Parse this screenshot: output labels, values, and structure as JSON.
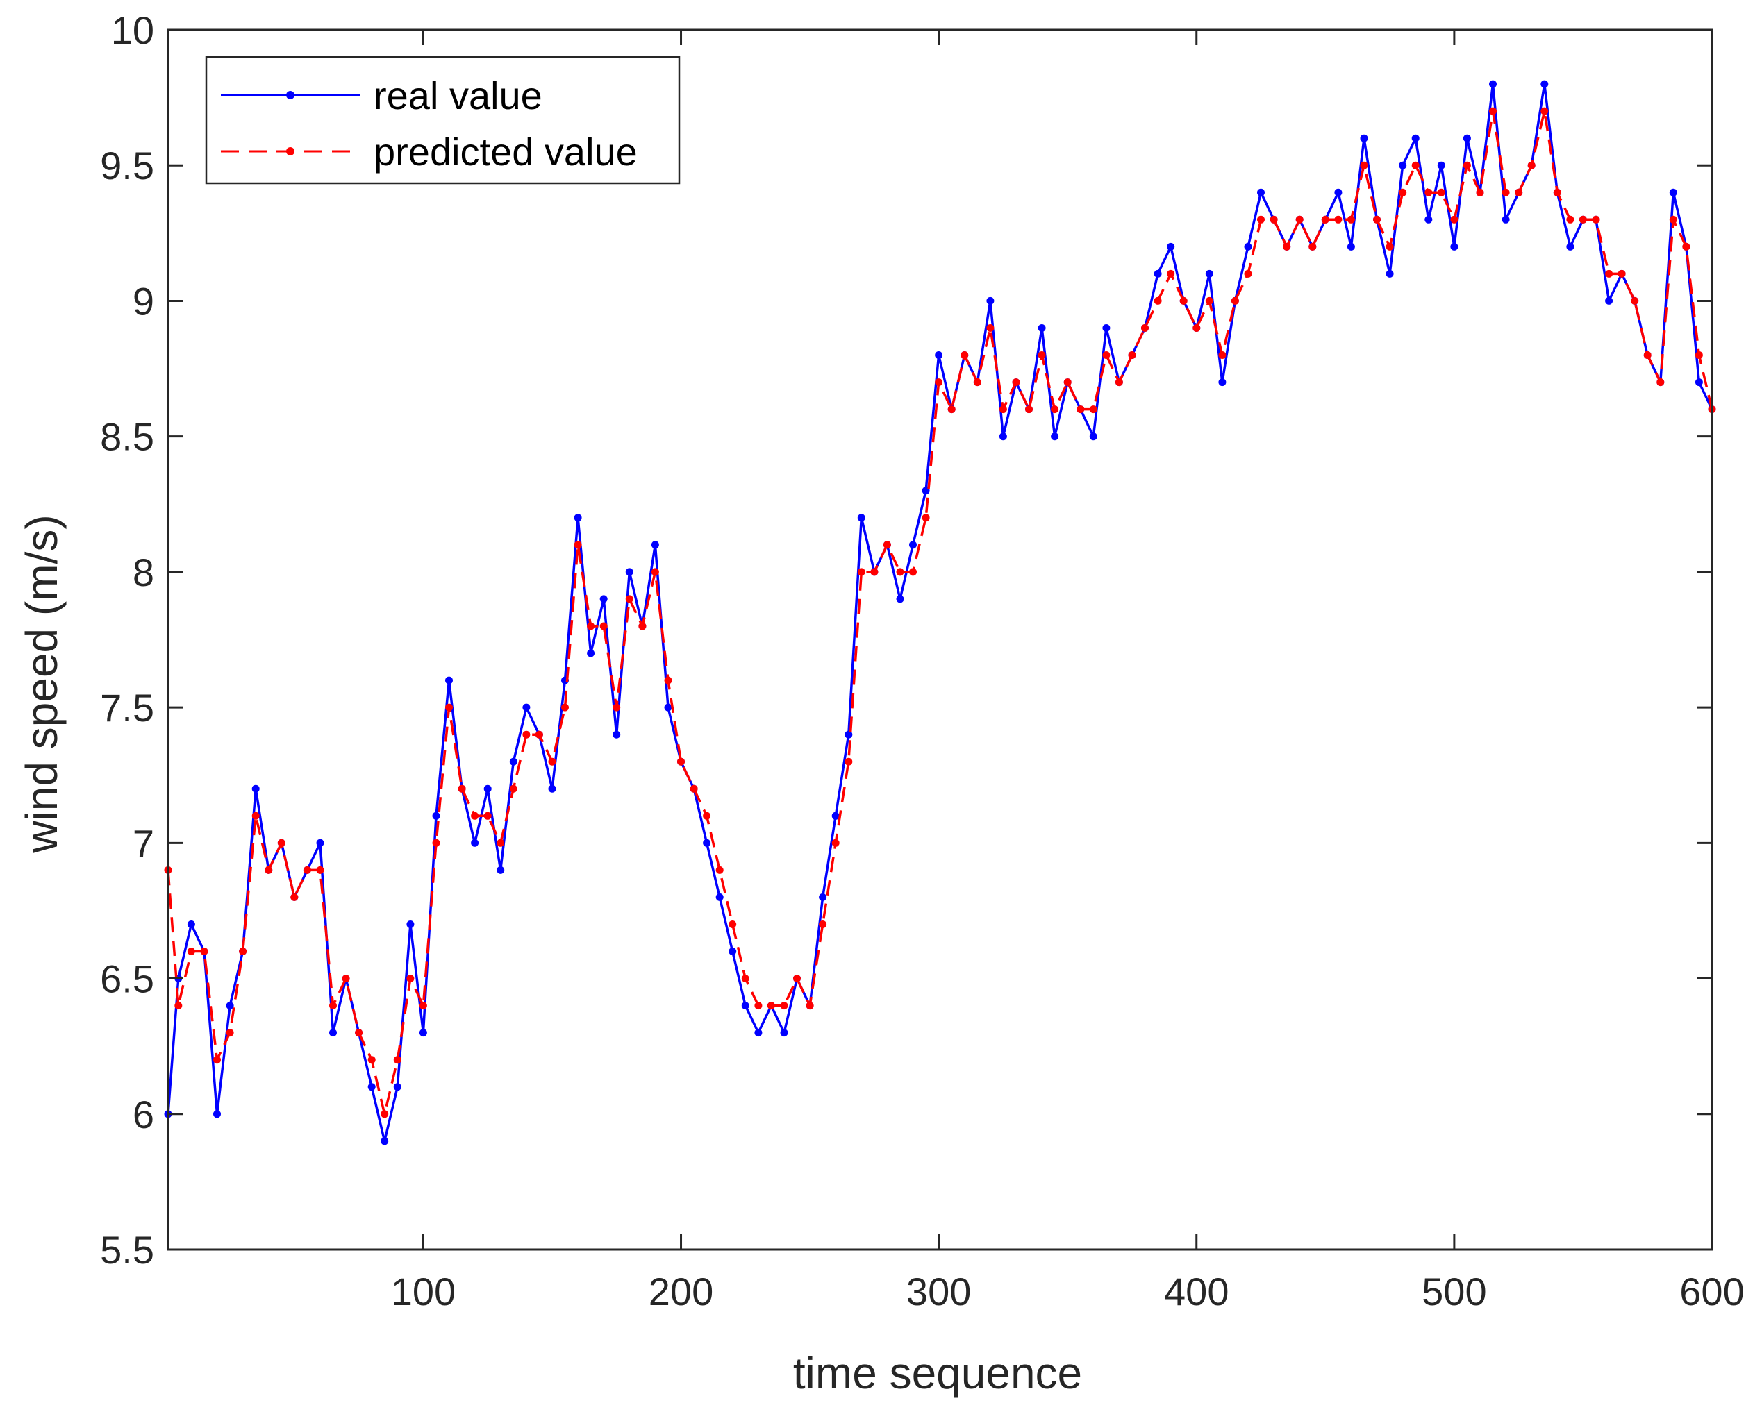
{
  "chart_data": {
    "type": "line",
    "title": "",
    "xlabel": "time sequence",
    "ylabel": "wind speed (m/s)",
    "xlim": [
      1,
      600
    ],
    "ylim": [
      5.5,
      10
    ],
    "xticks": [
      100,
      200,
      300,
      400,
      500,
      600
    ],
    "xtick_labels": [
      "100",
      "200",
      "300",
      "400",
      "500",
      "600"
    ],
    "yticks": [
      5.5,
      6,
      6.5,
      7,
      7.5,
      8,
      8.5,
      9,
      9.5,
      10
    ],
    "ytick_labels": [
      "5.5",
      "6",
      "6.5",
      "7",
      "7.5",
      "8",
      "8.5",
      "9",
      "9.5",
      "10"
    ],
    "legend_position": "top-left",
    "grid": false,
    "sampling": "every 5th point of 600 (approximate readings)",
    "x": [
      1,
      5,
      10,
      15,
      20,
      25,
      30,
      35,
      40,
      45,
      50,
      55,
      60,
      65,
      70,
      75,
      80,
      85,
      90,
      95,
      100,
      105,
      110,
      115,
      120,
      125,
      130,
      135,
      140,
      145,
      150,
      155,
      160,
      165,
      170,
      175,
      180,
      185,
      190,
      195,
      200,
      205,
      210,
      215,
      220,
      225,
      230,
      235,
      240,
      245,
      250,
      255,
      260,
      265,
      270,
      275,
      280,
      285,
      290,
      295,
      300,
      305,
      310,
      315,
      320,
      325,
      330,
      335,
      340,
      345,
      350,
      355,
      360,
      365,
      370,
      375,
      380,
      385,
      390,
      395,
      400,
      405,
      410,
      415,
      420,
      425,
      430,
      435,
      440,
      445,
      450,
      455,
      460,
      465,
      470,
      475,
      480,
      485,
      490,
      495,
      500,
      505,
      510,
      515,
      520,
      525,
      530,
      535,
      540,
      545,
      550,
      555,
      560,
      565,
      570,
      575,
      580,
      585,
      590,
      595,
      600
    ],
    "series": [
      {
        "name": "real value",
        "color": "#0000ff",
        "style": "solid",
        "values": [
          6.0,
          6.5,
          6.7,
          6.6,
          6.0,
          6.4,
          6.6,
          7.2,
          6.9,
          7.0,
          6.8,
          6.9,
          7.0,
          6.3,
          6.5,
          6.3,
          6.1,
          5.9,
          6.1,
          6.7,
          6.3,
          7.1,
          7.6,
          7.2,
          7.0,
          7.2,
          6.9,
          7.3,
          7.5,
          7.4,
          7.2,
          7.6,
          8.2,
          7.7,
          7.9,
          7.4,
          8.0,
          7.8,
          8.1,
          7.5,
          7.3,
          7.2,
          7.0,
          6.8,
          6.6,
          6.4,
          6.3,
          6.4,
          6.3,
          6.5,
          6.4,
          6.8,
          7.1,
          7.4,
          8.2,
          8.0,
          8.1,
          7.9,
          8.1,
          8.3,
          8.8,
          8.6,
          8.8,
          8.7,
          9.0,
          8.5,
          8.7,
          8.6,
          8.9,
          8.5,
          8.7,
          8.6,
          8.5,
          8.9,
          8.7,
          8.8,
          8.9,
          9.1,
          9.2,
          9.0,
          8.9,
          9.1,
          8.7,
          9.0,
          9.2,
          9.4,
          9.3,
          9.2,
          9.3,
          9.2,
          9.3,
          9.4,
          9.2,
          9.6,
          9.3,
          9.1,
          9.5,
          9.6,
          9.3,
          9.5,
          9.2,
          9.6,
          9.4,
          9.8,
          9.3,
          9.4,
          9.5,
          9.8,
          9.4,
          9.2,
          9.3,
          9.3,
          9.0,
          9.1,
          9.0,
          8.8,
          8.7,
          9.4,
          9.2,
          8.7,
          8.6
        ]
      },
      {
        "name": "predicted value",
        "color": "#ff0000",
        "style": "dashed",
        "values": [
          6.9,
          6.4,
          6.6,
          6.6,
          6.2,
          6.3,
          6.6,
          7.1,
          6.9,
          7.0,
          6.8,
          6.9,
          6.9,
          6.4,
          6.5,
          6.3,
          6.2,
          6.0,
          6.2,
          6.5,
          6.4,
          7.0,
          7.5,
          7.2,
          7.1,
          7.1,
          7.0,
          7.2,
          7.4,
          7.4,
          7.3,
          7.5,
          8.1,
          7.8,
          7.8,
          7.5,
          7.9,
          7.8,
          8.0,
          7.6,
          7.3,
          7.2,
          7.1,
          6.9,
          6.7,
          6.5,
          6.4,
          6.4,
          6.4,
          6.5,
          6.4,
          6.7,
          7.0,
          7.3,
          8.0,
          8.0,
          8.1,
          8.0,
          8.0,
          8.2,
          8.7,
          8.6,
          8.8,
          8.7,
          8.9,
          8.6,
          8.7,
          8.6,
          8.8,
          8.6,
          8.7,
          8.6,
          8.6,
          8.8,
          8.7,
          8.8,
          8.9,
          9.0,
          9.1,
          9.0,
          8.9,
          9.0,
          8.8,
          9.0,
          9.1,
          9.3,
          9.3,
          9.2,
          9.3,
          9.2,
          9.3,
          9.3,
          9.3,
          9.5,
          9.3,
          9.2,
          9.4,
          9.5,
          9.4,
          9.4,
          9.3,
          9.5,
          9.4,
          9.7,
          9.4,
          9.4,
          9.5,
          9.7,
          9.4,
          9.3,
          9.3,
          9.3,
          9.1,
          9.1,
          9.0,
          8.8,
          8.7,
          9.3,
          9.2,
          8.8,
          8.6
        ]
      }
    ]
  }
}
